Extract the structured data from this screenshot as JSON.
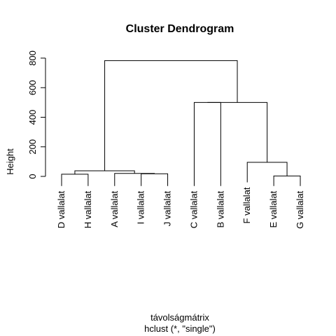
{
  "chart_data": {
    "type": "dendrogram",
    "title": "Cluster Dendrogram",
    "xlabel": "távolságmátrix",
    "sublabel": "hclust (*, \"single\")",
    "ylabel": "Height",
    "ylim": [
      0,
      800
    ],
    "yticks": [
      "0",
      "200",
      "400",
      "600",
      "800"
    ],
    "leaves": [
      "D vallalat",
      "H vallalat",
      "A vallalat",
      "I vallalat",
      "J vallalat",
      "C vallalat",
      "B vallalat",
      "F vallalat",
      "E vallalat",
      "G vallalat"
    ],
    "merges": [
      {
        "left": 4,
        "right": 5,
        "height": 18
      },
      {
        "left": 3,
        "right": 11,
        "height": 20
      },
      {
        "left": 1,
        "right": 2,
        "height": 15
      },
      {
        "left": 13,
        "right": 12,
        "height": 38
      },
      {
        "left": 9,
        "right": 10,
        "height": 3
      },
      {
        "left": 8,
        "right": 15,
        "height": 95
      },
      {
        "left": 6,
        "right": 7,
        "height": 500
      },
      {
        "left": 17,
        "right": 16,
        "height": 500
      },
      {
        "left": 14,
        "right": 18,
        "height": 783
      }
    ],
    "leaf_heights": [
      -65,
      -65,
      -65,
      -65,
      -65,
      -65,
      -65,
      -40,
      -65,
      -65
    ],
    "grid": false,
    "legend": "none"
  }
}
